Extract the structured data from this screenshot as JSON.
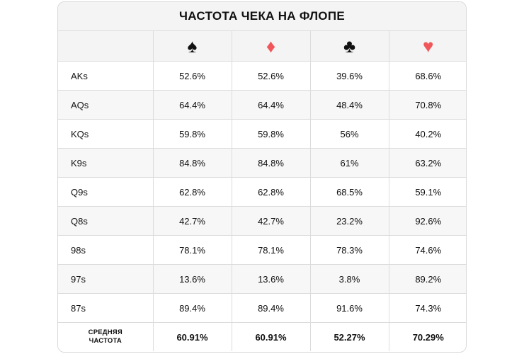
{
  "chart_data": {
    "type": "table",
    "title": "ЧАСТОТА ЧЕКА НА ФЛОПЕ",
    "columns": [
      {
        "name": "spade",
        "glyph": "♠",
        "color": "#111111"
      },
      {
        "name": "diamond",
        "glyph": "♦",
        "color": "#f0565a"
      },
      {
        "name": "club",
        "glyph": "♣",
        "color": "#111111"
      },
      {
        "name": "heart",
        "glyph": "♥",
        "color": "#f0565a"
      }
    ],
    "rows": [
      {
        "hand": "AKs",
        "values": [
          "52.6%",
          "52.6%",
          "39.6%",
          "68.6%"
        ]
      },
      {
        "hand": "AQs",
        "values": [
          "64.4%",
          "64.4%",
          "48.4%",
          "70.8%"
        ]
      },
      {
        "hand": "KQs",
        "values": [
          "59.8%",
          "59.8%",
          "56%",
          "40.2%"
        ]
      },
      {
        "hand": "K9s",
        "values": [
          "84.8%",
          "84.8%",
          "61%",
          "63.2%"
        ]
      },
      {
        "hand": "Q9s",
        "values": [
          "62.8%",
          "62.8%",
          "68.5%",
          "59.1%"
        ]
      },
      {
        "hand": "Q8s",
        "values": [
          "42.7%",
          "42.7%",
          "23.2%",
          "92.6%"
        ]
      },
      {
        "hand": "98s",
        "values": [
          "78.1%",
          "78.1%",
          "78.3%",
          "74.6%"
        ]
      },
      {
        "hand": "97s",
        "values": [
          "13.6%",
          "13.6%",
          "3.8%",
          "89.2%"
        ]
      },
      {
        "hand": "87s",
        "values": [
          "89.4%",
          "89.4%",
          "91.6%",
          "74.3%"
        ]
      }
    ],
    "average": {
      "label_line1": "СРЕДНЯЯ",
      "label_line2": "ЧАСТОТА",
      "values": [
        "60.91%",
        "60.91%",
        "52.27%",
        "70.29%"
      ]
    }
  }
}
